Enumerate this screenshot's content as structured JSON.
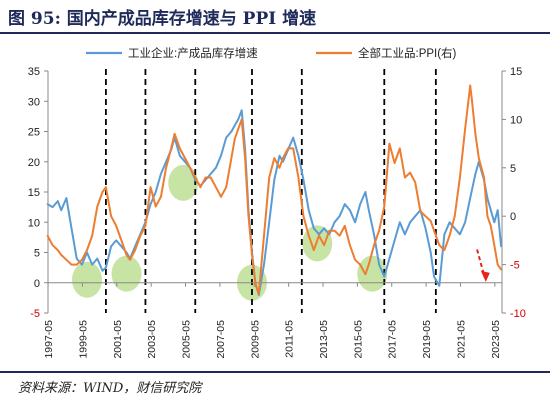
{
  "figure": {
    "title": "图 95:  国内产成品库存增速与 PPI 增速",
    "source": "资料来源：WIND，财信研究院"
  },
  "colors": {
    "inventory": "#5b9bd5",
    "ppi": "#ed7d31",
    "highlight": "#9acd5a",
    "arrow": "#e8221c",
    "title": "#1f2a5a"
  },
  "chart_data": {
    "type": "line",
    "legend_position": "top",
    "grid": false,
    "x_tick_labels": [
      "1997-05",
      "1999-05",
      "2001-05",
      "2003-05",
      "2005-05",
      "2007-05",
      "2009-05",
      "2011-05",
      "2013-05",
      "2015-05",
      "2017-05",
      "2019-05",
      "2021-05",
      "2023-05"
    ],
    "x_range": [
      1997.33,
      2023.75
    ],
    "y_left": {
      "ticks": [
        "-5",
        "0",
        "5",
        "10",
        "15",
        "20",
        "25",
        "30",
        "35"
      ],
      "range": [
        -5,
        35
      ]
    },
    "y_right": {
      "ticks": [
        "-10",
        "-5",
        "0",
        "5",
        "10",
        "15"
      ],
      "range": [
        -10,
        15
      ]
    },
    "series": [
      {
        "name": "工业企业:产成品库存增速",
        "axis": "left",
        "points": [
          [
            1997.3,
            13
          ],
          [
            1997.6,
            12.5
          ],
          [
            1997.9,
            13.5
          ],
          [
            1998.1,
            12
          ],
          [
            1998.4,
            14
          ],
          [
            1998.7,
            9
          ],
          [
            1999.0,
            4
          ],
          [
            1999.3,
            3
          ],
          [
            1999.6,
            5
          ],
          [
            1999.9,
            3
          ],
          [
            2000.2,
            4
          ],
          [
            2000.5,
            2
          ],
          [
            2000.7,
            2.5
          ],
          [
            2001.0,
            6
          ],
          [
            2001.3,
            7
          ],
          [
            2001.6,
            6
          ],
          [
            2001.9,
            5
          ],
          [
            2002.1,
            4
          ],
          [
            2002.4,
            6
          ],
          [
            2002.7,
            8
          ],
          [
            2003.0,
            10
          ],
          [
            2003.3,
            13
          ],
          [
            2003.6,
            15
          ],
          [
            2003.9,
            18
          ],
          [
            2004.2,
            20
          ],
          [
            2004.5,
            22
          ],
          [
            2004.7,
            24
          ],
          [
            2005.0,
            21
          ],
          [
            2005.3,
            20
          ],
          [
            2005.6,
            19
          ],
          [
            2005.9,
            17
          ],
          [
            2006.2,
            16
          ],
          [
            2006.5,
            17
          ],
          [
            2006.8,
            18
          ],
          [
            2007.1,
            19
          ],
          [
            2007.4,
            21
          ],
          [
            2007.7,
            24
          ],
          [
            2008.0,
            25
          ],
          [
            2008.2,
            26
          ],
          [
            2008.4,
            27
          ],
          [
            2008.6,
            28.5
          ],
          [
            2008.8,
            22
          ],
          [
            2009.0,
            12
          ],
          [
            2009.2,
            5
          ],
          [
            2009.4,
            0
          ],
          [
            2009.6,
            -2
          ],
          [
            2009.9,
            3
          ],
          [
            2010.2,
            10
          ],
          [
            2010.5,
            17
          ],
          [
            2010.8,
            21
          ],
          [
            2011.0,
            20
          ],
          [
            2011.3,
            22
          ],
          [
            2011.6,
            24
          ],
          [
            2011.9,
            21
          ],
          [
            2012.2,
            17
          ],
          [
            2012.5,
            12
          ],
          [
            2012.8,
            9
          ],
          [
            2013.1,
            8
          ],
          [
            2013.4,
            9
          ],
          [
            2013.7,
            8
          ],
          [
            2014.0,
            10
          ],
          [
            2014.3,
            11
          ],
          [
            2014.6,
            13
          ],
          [
            2014.9,
            12
          ],
          [
            2015.2,
            10
          ],
          [
            2015.5,
            13
          ],
          [
            2015.8,
            15
          ],
          [
            2016.0,
            12
          ],
          [
            2016.3,
            8
          ],
          [
            2016.6,
            3
          ],
          [
            2016.9,
            1
          ],
          [
            2017.2,
            4
          ],
          [
            2017.5,
            7
          ],
          [
            2017.8,
            10
          ],
          [
            2018.1,
            8
          ],
          [
            2018.4,
            10
          ],
          [
            2018.7,
            11
          ],
          [
            2019.0,
            12
          ],
          [
            2019.3,
            9
          ],
          [
            2019.6,
            5
          ],
          [
            2019.8,
            1
          ],
          [
            2020.1,
            -0.5
          ],
          [
            2020.4,
            8
          ],
          [
            2020.7,
            10
          ],
          [
            2021.0,
            9
          ],
          [
            2021.3,
            8
          ],
          [
            2021.6,
            10
          ],
          [
            2021.9,
            14
          ],
          [
            2022.2,
            18
          ],
          [
            2022.4,
            20
          ],
          [
            2022.7,
            17
          ],
          [
            2022.9,
            14
          ],
          [
            2023.1,
            12
          ],
          [
            2023.3,
            10
          ],
          [
            2023.5,
            12
          ],
          [
            2023.7,
            6
          ]
        ]
      },
      {
        "name": "全部工业品:PPI(右)",
        "axis": "right",
        "points": [
          [
            1997.3,
            -2
          ],
          [
            1997.6,
            -3
          ],
          [
            1997.9,
            -3.5
          ],
          [
            1998.1,
            -4
          ],
          [
            1998.4,
            -4.5
          ],
          [
            1998.7,
            -5
          ],
          [
            1999.0,
            -5
          ],
          [
            1999.3,
            -4.5
          ],
          [
            1999.6,
            -3.5
          ],
          [
            1999.9,
            -2
          ],
          [
            2000.2,
            1
          ],
          [
            2000.5,
            2.5
          ],
          [
            2000.7,
            3
          ],
          [
            2001.0,
            0
          ],
          [
            2001.3,
            -1
          ],
          [
            2001.6,
            -2.5
          ],
          [
            2001.9,
            -4
          ],
          [
            2002.1,
            -4.5
          ],
          [
            2002.4,
            -3.5
          ],
          [
            2002.7,
            -2
          ],
          [
            2003.0,
            -1
          ],
          [
            2003.3,
            3
          ],
          [
            2003.6,
            1
          ],
          [
            2003.9,
            2
          ],
          [
            2004.2,
            5
          ],
          [
            2004.5,
            7
          ],
          [
            2004.7,
            8.5
          ],
          [
            2005.0,
            7
          ],
          [
            2005.3,
            6
          ],
          [
            2005.6,
            5
          ],
          [
            2005.9,
            4
          ],
          [
            2006.2,
            3
          ],
          [
            2006.5,
            4
          ],
          [
            2006.8,
            4
          ],
          [
            2007.1,
            3
          ],
          [
            2007.4,
            2
          ],
          [
            2007.7,
            3
          ],
          [
            2008.0,
            6
          ],
          [
            2008.2,
            8
          ],
          [
            2008.4,
            9
          ],
          [
            2008.6,
            10
          ],
          [
            2008.8,
            6
          ],
          [
            2009.0,
            0
          ],
          [
            2009.2,
            -4
          ],
          [
            2009.4,
            -7
          ],
          [
            2009.6,
            -8
          ],
          [
            2009.9,
            -2
          ],
          [
            2010.2,
            4
          ],
          [
            2010.5,
            6
          ],
          [
            2010.8,
            5
          ],
          [
            2011.0,
            6
          ],
          [
            2011.3,
            7
          ],
          [
            2011.6,
            7
          ],
          [
            2011.9,
            4
          ],
          [
            2012.2,
            0
          ],
          [
            2012.5,
            -2
          ],
          [
            2012.8,
            -3.5
          ],
          [
            2013.1,
            -2
          ],
          [
            2013.4,
            -3
          ],
          [
            2013.7,
            -1.5
          ],
          [
            2014.0,
            -1.5
          ],
          [
            2014.3,
            -2
          ],
          [
            2014.6,
            -1
          ],
          [
            2014.9,
            -3
          ],
          [
            2015.2,
            -4.5
          ],
          [
            2015.5,
            -5
          ],
          [
            2015.8,
            -6
          ],
          [
            2016.0,
            -5
          ],
          [
            2016.3,
            -3
          ],
          [
            2016.6,
            -1.5
          ],
          [
            2016.9,
            1
          ],
          [
            2017.2,
            7.5
          ],
          [
            2017.5,
            5.5
          ],
          [
            2017.8,
            7
          ],
          [
            2018.1,
            4
          ],
          [
            2018.4,
            4.5
          ],
          [
            2018.7,
            3.5
          ],
          [
            2019.0,
            0.5
          ],
          [
            2019.3,
            0
          ],
          [
            2019.6,
            -0.5
          ],
          [
            2019.8,
            -1.5
          ],
          [
            2020.1,
            -3
          ],
          [
            2020.4,
            -3.5
          ],
          [
            2020.7,
            -2
          ],
          [
            2021.0,
            0
          ],
          [
            2021.3,
            4
          ],
          [
            2021.6,
            9
          ],
          [
            2021.9,
            13.5
          ],
          [
            2022.0,
            12
          ],
          [
            2022.2,
            8.5
          ],
          [
            2022.4,
            6
          ],
          [
            2022.7,
            4
          ],
          [
            2022.9,
            0
          ],
          [
            2023.1,
            -1
          ],
          [
            2023.3,
            -3
          ],
          [
            2023.5,
            -5
          ],
          [
            2023.7,
            -5.5
          ]
        ]
      }
    ]
  }
}
